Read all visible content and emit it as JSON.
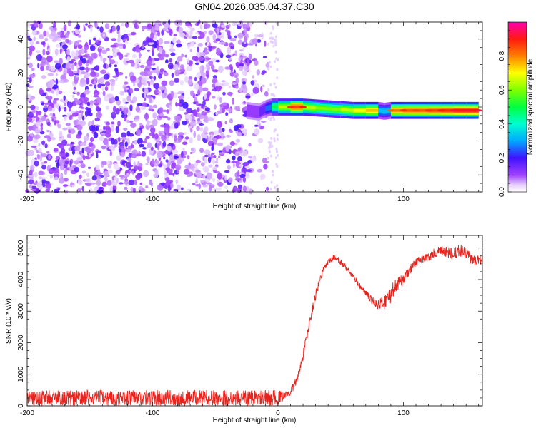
{
  "title": "GN04.2026.035.04.37.C30",
  "chart_data": [
    {
      "type": "heatmap",
      "xlabel": "Height of straight line (km)",
      "ylabel": "Frequency (Hz)",
      "xlim": [
        -200,
        163
      ],
      "ylim": [
        -50,
        50
      ],
      "xticks": [
        -200,
        -100,
        0,
        100
      ],
      "yticks": [
        -40,
        -20,
        0,
        20,
        40
      ],
      "noise_region_x": [
        -200,
        -8
      ],
      "signal_band": [
        {
          "x": -25,
          "y": -2,
          "intensity": 0.22
        },
        {
          "x": -15,
          "y": -3,
          "intensity": 0.18
        },
        {
          "x": -10,
          "y": -1,
          "intensity": 0.25
        },
        {
          "x": -5,
          "y": 0,
          "intensity": 0.45
        },
        {
          "x": 0,
          "y": 0,
          "intensity": 0.6
        },
        {
          "x": 10,
          "y": 0,
          "intensity": 0.8
        },
        {
          "x": 20,
          "y": 0,
          "intensity": 0.82
        },
        {
          "x": 30,
          "y": -0.5,
          "intensity": 0.6
        },
        {
          "x": 40,
          "y": -1,
          "intensity": 0.55
        },
        {
          "x": 50,
          "y": -1.5,
          "intensity": 0.6
        },
        {
          "x": 60,
          "y": -2,
          "intensity": 0.65
        },
        {
          "x": 70,
          "y": -2,
          "intensity": 0.7
        },
        {
          "x": 80,
          "y": -2,
          "intensity": 0.72
        },
        {
          "x": 85,
          "y": -2.5,
          "intensity": 0.3
        },
        {
          "x": 90,
          "y": -2,
          "intensity": 0.75
        },
        {
          "x": 100,
          "y": -2,
          "intensity": 0.8
        },
        {
          "x": 110,
          "y": -2,
          "intensity": 0.78
        },
        {
          "x": 120,
          "y": -2,
          "intensity": 0.8
        },
        {
          "x": 130,
          "y": -2,
          "intensity": 0.82
        },
        {
          "x": 140,
          "y": -2,
          "intensity": 0.85
        },
        {
          "x": 150,
          "y": -2,
          "intensity": 0.85
        },
        {
          "x": 160,
          "y": -2,
          "intensity": 0.85
        }
      ],
      "colorbar": {
        "label": "Normalized spectral amplitude",
        "ticks": [
          0.0,
          0.2,
          0.4,
          0.6,
          0.8
        ],
        "range": [
          0,
          1
        ]
      }
    },
    {
      "type": "line",
      "xlabel": "Height of straight line (km)",
      "ylabel": "SNR (10 * v/v)",
      "xlim": [
        -200,
        163
      ],
      "ylim": [
        0,
        5400
      ],
      "xticks": [
        -200,
        -100,
        0,
        100
      ],
      "yticks": [
        0,
        1000,
        2000,
        3000,
        4000,
        5000
      ],
      "series": [
        {
          "color": "#e8231d",
          "x": [
            -200,
            -150,
            -100,
            -50,
            0,
            5,
            10,
            15,
            20,
            25,
            30,
            35,
            40,
            45,
            50,
            55,
            60,
            65,
            70,
            75,
            80,
            85,
            90,
            95,
            100,
            105,
            110,
            115,
            120,
            125,
            130,
            135,
            140,
            145,
            150,
            155,
            160,
            163
          ],
          "y": [
            250,
            250,
            250,
            250,
            250,
            320,
            450,
            800,
            1600,
            2600,
            3500,
            4200,
            4550,
            4700,
            4550,
            4350,
            4100,
            3800,
            3550,
            3350,
            3200,
            3300,
            3550,
            3850,
            4000,
            4300,
            4550,
            4650,
            4700,
            4850,
            4900,
            4850,
            4800,
            4950,
            4800,
            4650,
            4650,
            4600
          ],
          "noise": [
            250,
            250,
            250,
            250,
            250,
            120,
            120,
            150,
            160,
            160,
            140,
            120,
            110,
            100,
            100,
            100,
            100,
            100,
            120,
            130,
            150,
            250,
            300,
            220,
            160,
            150,
            140,
            130,
            140,
            150,
            170,
            200,
            180,
            200,
            200,
            180,
            180,
            160
          ]
        }
      ]
    }
  ]
}
